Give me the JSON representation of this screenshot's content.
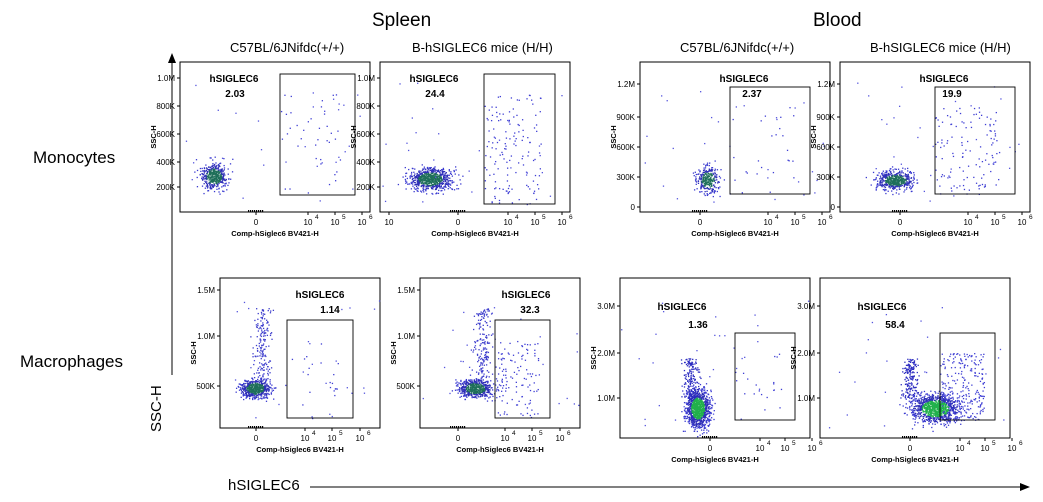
{
  "header": {
    "tissues": [
      "Spleen",
      "Blood"
    ],
    "genotypes": [
      "C57BL/6JNifdc(+/+)",
      "B-hSIGLEC6 mice (H/H)",
      "C57BL/6JNifdc(+/+)",
      "B-hSIGLEC6 mice (H/H)"
    ]
  },
  "rows": [
    "Monocytes",
    "Macrophages"
  ],
  "axes": {
    "y_arrow_label": "SSC-H",
    "x_arrow_label": "hSIGLEC6"
  },
  "chart_data": [
    {
      "type": "scatter",
      "tissue": "Spleen",
      "genotype": "C57BL/6JNifdc(+/+)",
      "population": "Monocytes",
      "ylabel": "SSC-H",
      "xlabel": "Comp-hSiglec6 BV421-H",
      "yticks": [
        "200K",
        "400K",
        "600K",
        "800K",
        "1.0M"
      ],
      "xticks": [
        "0",
        "10",
        "10",
        "10",
        "10"
      ],
      "xtick_exp": [
        "",
        "4",
        "5",
        "6",
        ""
      ],
      "gate": {
        "name": "hSIGLEC6",
        "percent": "2.03"
      }
    },
    {
      "type": "scatter",
      "tissue": "Spleen",
      "genotype": "B-hSIGLEC6 mice (H/H)",
      "population": "Monocytes",
      "ylabel": "SSC-H",
      "xlabel": "Comp-hSiglec6 BV421-H",
      "yticks": [
        "200K",
        "400K",
        "600K",
        "800K",
        "1.0M"
      ],
      "xticks": [
        "0",
        "10",
        "10",
        "10"
      ],
      "xtick_exp": [
        "",
        "4",
        "5",
        "6"
      ],
      "gate": {
        "name": "hSIGLEC6",
        "percent": "24.4"
      }
    },
    {
      "type": "scatter",
      "tissue": "Blood",
      "genotype": "C57BL/6JNifdc(+/+)",
      "population": "Monocytes",
      "ylabel": "SSC-H",
      "xlabel": "Comp-hSiglec6 BV421-H",
      "yticks": [
        "0",
        "300K",
        "600K",
        "900K",
        "1.2M"
      ],
      "xticks": [
        "0",
        "10",
        "10",
        "10"
      ],
      "xtick_exp": [
        "",
        "4",
        "5",
        "6"
      ],
      "gate": {
        "name": "hSIGLEC6",
        "percent": "2.37"
      }
    },
    {
      "type": "scatter",
      "tissue": "Blood",
      "genotype": "B-hSIGLEC6 mice (H/H)",
      "population": "Monocytes",
      "ylabel": "SSC-H",
      "xlabel": "Comp-hSiglec6 BV421-H",
      "yticks": [
        "0",
        "300K",
        "600K",
        "900K",
        "1.2M"
      ],
      "xticks": [
        "0",
        "10",
        "10",
        "10"
      ],
      "xtick_exp": [
        "",
        "4",
        "5",
        "6"
      ],
      "gate": {
        "name": "hSIGLEC6",
        "percent": "19.9"
      }
    },
    {
      "type": "scatter",
      "tissue": "Spleen",
      "genotype": "C57BL/6JNifdc(+/+)",
      "population": "Macrophages",
      "ylabel": "SSC-H",
      "xlabel": "Comp-hSiglec6 BV421-H",
      "yticks": [
        "500K",
        "1.0M",
        "1.5M"
      ],
      "xticks": [
        "0",
        "10",
        "10",
        "10"
      ],
      "xtick_exp": [
        "",
        "4",
        "5",
        "6"
      ],
      "gate": {
        "name": "hSIGLEC6",
        "percent": "1.14"
      }
    },
    {
      "type": "scatter",
      "tissue": "Spleen",
      "genotype": "B-hSIGLEC6 mice (H/H)",
      "population": "Macrophages",
      "ylabel": "SSC-H",
      "xlabel": "Comp-hSiglec6 BV421-H",
      "yticks": [
        "500K",
        "1.0M",
        "1.5M"
      ],
      "xticks": [
        "0",
        "10",
        "10",
        "10"
      ],
      "xtick_exp": [
        "",
        "4",
        "5",
        "6"
      ],
      "gate": {
        "name": "hSIGLEC6",
        "percent": "32.3"
      }
    },
    {
      "type": "scatter",
      "tissue": "Blood",
      "genotype": "C57BL/6JNifdc(+/+)",
      "population": "Macrophages",
      "ylabel": "SSC-H",
      "xlabel": "Comp-hSiglec6 BV421-H",
      "yticks": [
        "1.0M",
        "2.0M",
        "3.0M"
      ],
      "xticks": [
        "0",
        "10",
        "10",
        "10"
      ],
      "xtick_exp": [
        "",
        "4",
        "5",
        "6"
      ],
      "gate": {
        "name": "hSIGLEC6",
        "percent": "1.36"
      }
    },
    {
      "type": "scatter",
      "tissue": "Blood",
      "genotype": "B-hSIGLEC6 mice (H/H)",
      "population": "Macrophages",
      "ylabel": "SSC-H",
      "xlabel": "Comp-hSiglec6 BV421-H",
      "yticks": [
        "1.0M",
        "2.0M",
        "3.0M"
      ],
      "xticks": [
        "0",
        "10",
        "10",
        "10"
      ],
      "xtick_exp": [
        "",
        "4",
        "5",
        "6"
      ],
      "gate": {
        "name": "hSIGLEC6",
        "percent": "58.4"
      }
    }
  ]
}
